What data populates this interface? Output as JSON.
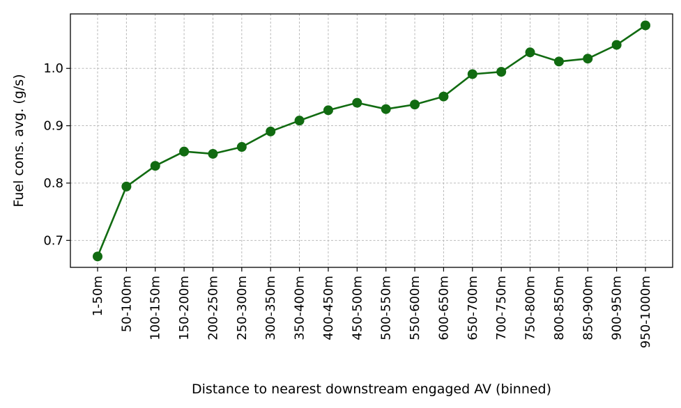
{
  "chart_data": {
    "type": "line",
    "title": "",
    "xlabel": "Distance to nearest downstream engaged AV (binned)",
    "ylabel": "Fuel cons. avg. (g/s)",
    "categories": [
      "1-50m",
      "50-100m",
      "100-150m",
      "150-200m",
      "200-250m",
      "250-300m",
      "300-350m",
      "350-400m",
      "400-450m",
      "450-500m",
      "500-550m",
      "550-600m",
      "600-650m",
      "650-700m",
      "700-750m",
      "750-800m",
      "800-850m",
      "850-900m",
      "900-950m",
      "950-1000m"
    ],
    "series": [
      {
        "values": [
          0.672,
          0.794,
          0.83,
          0.855,
          0.851,
          0.863,
          0.89,
          0.909,
          0.927,
          0.94,
          0.929,
          0.937,
          0.951,
          0.99,
          0.994,
          1.028,
          1.012,
          1.017,
          1.041,
          1.075
        ],
        "color": "#116b11"
      }
    ],
    "ylim": [
      0.653,
      1.095
    ],
    "yticks": [
      0.7,
      0.8,
      0.9,
      1.0
    ],
    "ytick_labels": [
      "0.7",
      "0.8",
      "0.9",
      "1.0"
    ],
    "grid": true,
    "marker": "circle"
  }
}
